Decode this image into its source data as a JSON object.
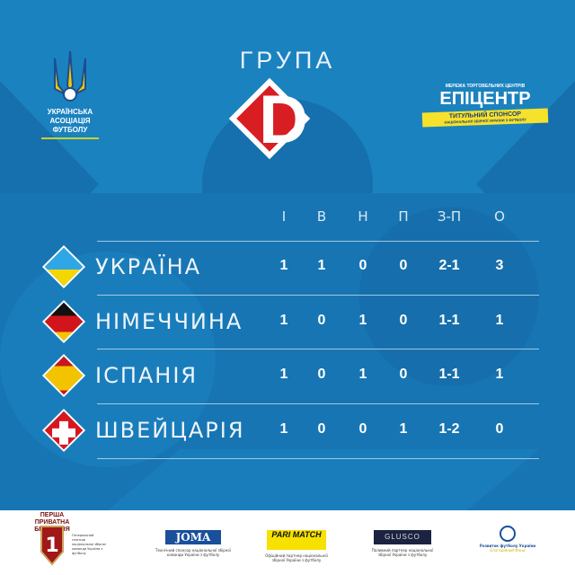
{
  "header": {
    "title": "ГРУПА",
    "group_letter": "D",
    "federation": {
      "name_lines": [
        "УКРАЇНСЬКА",
        "АСОЦІАЦІЯ",
        "ФУТБОЛУ"
      ]
    },
    "title_sponsor": {
      "top": "МЕРЕЖА ТОРГОВЕЛЬНИХ ЦЕНТРІВ",
      "name": "ЕПІЦЕНТР",
      "ribbon": "ТИТУЛЬНИЙ СПОНСОР",
      "ribbon_sub": "НАЦІОНАЛЬНОЇ ЗБІРНОЇ УКРАЇНИ З ФУТБОЛУ"
    }
  },
  "table": {
    "columns": [
      "І",
      "В",
      "Н",
      "П",
      "З-П",
      "О"
    ],
    "rows": [
      {
        "team": "УКРАЇНА",
        "flag": "ukraine",
        "values": [
          "1",
          "1",
          "0",
          "0",
          "2-1",
          "3"
        ]
      },
      {
        "team": "НІМЕЧЧИНА",
        "flag": "germany",
        "values": [
          "1",
          "0",
          "1",
          "0",
          "1-1",
          "1"
        ]
      },
      {
        "team": "ІСПАНІЯ",
        "flag": "spain",
        "values": [
          "1",
          "0",
          "1",
          "0",
          "1-1",
          "1"
        ]
      },
      {
        "team": "ШВЕЙЦАРІЯ",
        "flag": "switzerland",
        "values": [
          "1",
          "0",
          "0",
          "1",
          "1-2",
          "0"
        ]
      }
    ]
  },
  "sponsors": [
    {
      "name": "Перша приватна броварня",
      "caption": "Генеральний спонсор національної збірної команди України з футболу"
    },
    {
      "name": "JOMA",
      "caption": "Технічний спонсор національної збірної команди України з футболу"
    },
    {
      "name": "PARI MATCH",
      "caption": "Офіційний партнер національної збірної України з футболу"
    },
    {
      "name": "GLUSCO",
      "caption": "Паливний партнер національної збірної України з футболу"
    },
    {
      "name": "Розвиток футболу України",
      "caption": "Благодійний Фонд"
    }
  ],
  "colors": {
    "background": "#1b82c0",
    "dark": "#1468a3",
    "accent_red": "#d81e23"
  }
}
